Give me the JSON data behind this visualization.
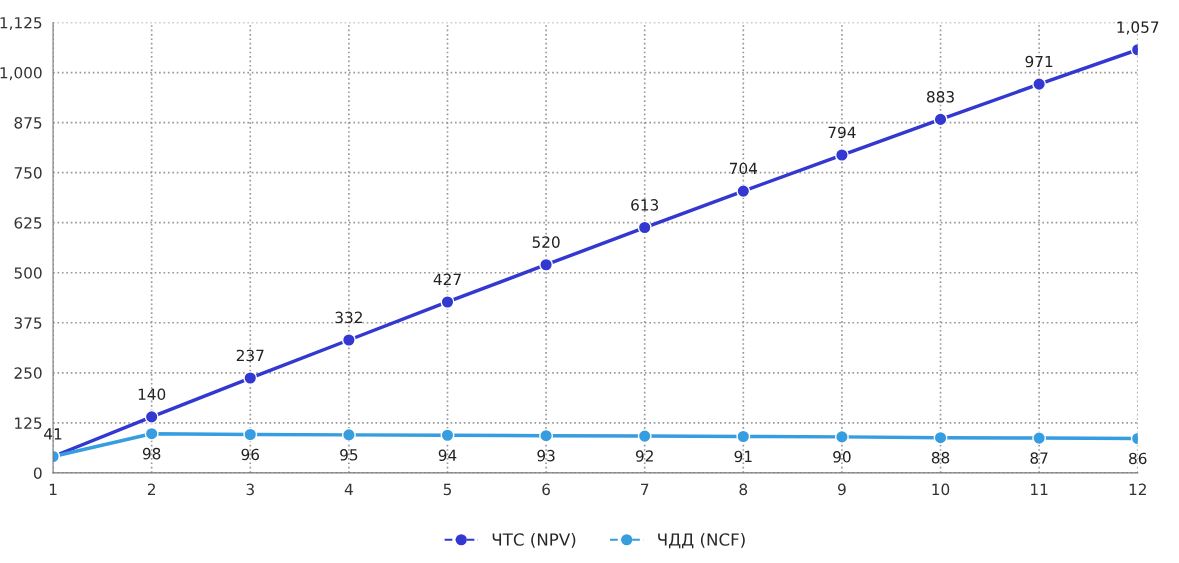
{
  "chart_data": {
    "type": "line",
    "x": [
      1,
      2,
      3,
      4,
      5,
      6,
      7,
      8,
      9,
      10,
      11,
      12
    ],
    "series": [
      {
        "name": "ЧТС (NPV)",
        "color": "#3338d0",
        "values": [
          41,
          140,
          237,
          332,
          427,
          520,
          613,
          704,
          794,
          883,
          971,
          1057
        ],
        "value_labels": [
          "41",
          "140",
          "237",
          "332",
          "427",
          "520",
          "613",
          "704",
          "794",
          "883",
          "971",
          "1,057"
        ]
      },
      {
        "name": "ЧДД (NCF)",
        "color": "#369de0",
        "values": [
          41,
          98,
          96,
          95,
          94,
          93,
          92,
          91,
          90,
          88,
          87,
          86
        ],
        "value_labels": [
          null,
          "98",
          "96",
          "95",
          "94",
          "93",
          "92",
          "91",
          "90",
          "88",
          "87",
          "86"
        ]
      }
    ],
    "xlim": [
      1,
      12
    ],
    "xticks": [
      1,
      2,
      3,
      4,
      5,
      6,
      7,
      8,
      9,
      10,
      11,
      12
    ],
    "ylim": [
      0,
      1125
    ],
    "yticks": [
      0,
      125,
      250,
      375,
      500,
      625,
      750,
      875,
      {
        "value": 1000,
        "label": "1,000"
      },
      {
        "value": 1125,
        "label": "1,125"
      }
    ],
    "grid": true,
    "legend": "bottom",
    "marker": "circle",
    "line_style": "solid"
  }
}
